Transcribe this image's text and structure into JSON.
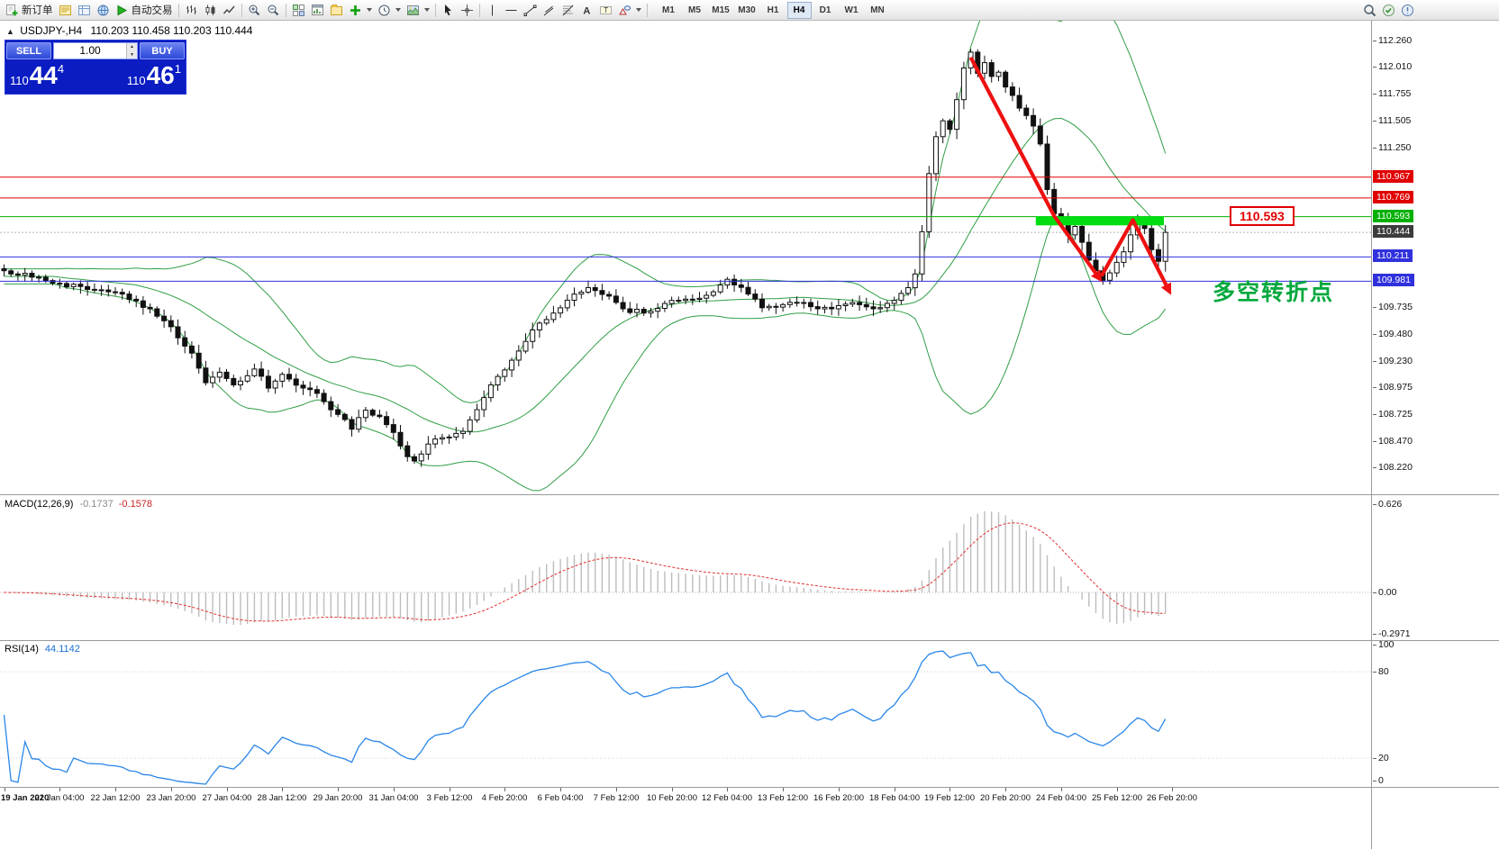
{
  "toolbar": {
    "new_order": "新订单",
    "autotrading": "自动交易",
    "timeframes": [
      "M1",
      "M5",
      "M15",
      "M30",
      "H1",
      "H4",
      "D1",
      "W1",
      "MN"
    ],
    "active_timeframe": "H4"
  },
  "chart_header": {
    "collapse_icon": "▲",
    "symbol_period": "USDJPY-,H4",
    "ohlc": "110.203 110.458 110.203 110.444"
  },
  "one_click": {
    "sell_label": "SELL",
    "buy_label": "BUY",
    "lot_value": "1.00",
    "sell_price": {
      "prefix": "110",
      "big": "44",
      "sup": "4"
    },
    "buy_price": {
      "prefix": "110",
      "big": "46",
      "sup": "1"
    }
  },
  "price_axis": {
    "plain_ticks": [
      112.26,
      112.01,
      111.755,
      111.505,
      111.25,
      109.735,
      109.48,
      109.23,
      108.975,
      108.725,
      108.47,
      108.22
    ],
    "current_price": {
      "value": "110.444",
      "bg": "#3c3c3c"
    }
  },
  "macd_panel": {
    "name": "MACD(12,26,9)",
    "main_value": "-0.1737",
    "signal_value": "-0.1578",
    "scale": [
      {
        "text": "0.626",
        "value": 0.626
      },
      {
        "text": "0.00",
        "value": 0
      },
      {
        "text": "-0.2971",
        "value": -0.2971
      }
    ]
  },
  "rsi_panel": {
    "name": "RSI(14)",
    "value": "44.1142",
    "scale": [
      {
        "text": "100",
        "value": 100
      },
      {
        "text": "80",
        "value": 80
      },
      {
        "text": "20",
        "value": 20
      },
      {
        "text": "0",
        "value": 0
      }
    ]
  },
  "time_axis": [
    "19 Jan 2020",
    "21 Jan 04:00",
    "22 Jan 12:00",
    "23 Jan 20:00",
    "27 Jan 04:00",
    "28 Jan 12:00",
    "29 Jan 20:00",
    "31 Jan 04:00",
    "3 Feb 12:00",
    "4 Feb 20:00",
    "6 Feb 04:00",
    "7 Feb 12:00",
    "10 Feb 20:00",
    "12 Feb 04:00",
    "13 Feb 12:00",
    "16 Feb 20:00",
    "18 Feb 04:00",
    "19 Feb 12:00",
    "20 Feb 20:00",
    "24 Feb 04:00",
    "25 Feb 12:00",
    "26 Feb 20:00"
  ],
  "chart_data": {
    "type": "candlestick",
    "symbol": "USDJPY-",
    "timeframe": "H4",
    "last_ohlc": {
      "open": 110.203,
      "high": 110.458,
      "low": 110.203,
      "close": 110.444
    },
    "last_close": 110.444,
    "candle_count": 168,
    "axis_top_price": 112.26,
    "axis_bottom_price": 108.22,
    "close_keyframes": [
      [
        0,
        110.08
      ],
      [
        4,
        110.02
      ],
      [
        8,
        109.96
      ],
      [
        13,
        109.9
      ],
      [
        17,
        109.86
      ],
      [
        21,
        109.72
      ],
      [
        24,
        109.55
      ],
      [
        27,
        109.3
      ],
      [
        29,
        109.02
      ],
      [
        31,
        109.12
      ],
      [
        33,
        109.0
      ],
      [
        36,
        109.15
      ],
      [
        38,
        108.97
      ],
      [
        40,
        109.1
      ],
      [
        43,
        108.97
      ],
      [
        45,
        108.92
      ],
      [
        48,
        108.72
      ],
      [
        50,
        108.58
      ],
      [
        52,
        108.76
      ],
      [
        54,
        108.7
      ],
      [
        56,
        108.55
      ],
      [
        58,
        108.32
      ],
      [
        59,
        108.28
      ],
      [
        61,
        108.44
      ],
      [
        63,
        108.5
      ],
      [
        66,
        108.56
      ],
      [
        69,
        108.88
      ],
      [
        71,
        109.08
      ],
      [
        74,
        109.32
      ],
      [
        76,
        109.52
      ],
      [
        79,
        109.68
      ],
      [
        82,
        109.86
      ],
      [
        84,
        109.92
      ],
      [
        87,
        109.84
      ],
      [
        89,
        109.72
      ],
      [
        92,
        109.68
      ],
      [
        95,
        109.77
      ],
      [
        97,
        109.8
      ],
      [
        100,
        109.82
      ],
      [
        102,
        109.88
      ],
      [
        104,
        110.0
      ],
      [
        107,
        109.86
      ],
      [
        109,
        109.73
      ],
      [
        112,
        109.76
      ],
      [
        115,
        109.78
      ],
      [
        117,
        109.72
      ],
      [
        120,
        109.75
      ],
      [
        122,
        109.78
      ],
      [
        125,
        109.72
      ],
      [
        128,
        109.8
      ],
      [
        130,
        109.92
      ],
      [
        131,
        110.05
      ],
      [
        132,
        110.45
      ],
      [
        133,
        111.0
      ],
      [
        134,
        111.35
      ],
      [
        135,
        111.5
      ],
      [
        136,
        111.42
      ],
      [
        137,
        111.7
      ],
      [
        138,
        112.0
      ],
      [
        139,
        112.15
      ],
      [
        140,
        111.95
      ],
      [
        141,
        112.05
      ],
      [
        142,
        111.92
      ],
      [
        143,
        111.96
      ],
      [
        144,
        111.82
      ],
      [
        145,
        111.74
      ],
      [
        146,
        111.62
      ],
      [
        147,
        111.55
      ],
      [
        148,
        111.45
      ],
      [
        149,
        111.28
      ],
      [
        150,
        110.85
      ],
      [
        151,
        110.62
      ],
      [
        152,
        110.55
      ],
      [
        153,
        110.42
      ],
      [
        154,
        110.5
      ],
      [
        155,
        110.35
      ],
      [
        156,
        110.18
      ],
      [
        157,
        110.08
      ],
      [
        158,
        109.99
      ],
      [
        159,
        110.06
      ],
      [
        160,
        110.16
      ],
      [
        161,
        110.26
      ],
      [
        162,
        110.42
      ],
      [
        163,
        110.55
      ],
      [
        164,
        110.48
      ],
      [
        165,
        110.28
      ],
      [
        166,
        110.17
      ],
      [
        167,
        110.444
      ]
    ],
    "bollinger": {
      "period": 20,
      "deviation": 2,
      "color": "#2f9e44"
    },
    "levels": [
      {
        "price": 110.967,
        "label": "110.967",
        "color": "#e00000"
      },
      {
        "price": 110.769,
        "label": "110.769",
        "color": "#e00000"
      },
      {
        "price": 110.593,
        "label": "110.593",
        "color": "#00b000"
      },
      {
        "price": 110.211,
        "label": "110.211",
        "color": "#3030dd"
      },
      {
        "price": 109.981,
        "label": "109.981",
        "color": "#3030dd"
      }
    ],
    "macd": {
      "fast": 12,
      "slow": 26,
      "signal": 9,
      "current_main": -0.1737,
      "current_signal": -0.1578
    },
    "rsi": {
      "period": 14,
      "current": 44.1142
    },
    "trend_arrows": {
      "color": "#ee1111",
      "paths": [
        [
          [
            139,
            112.1
          ],
          [
            151,
            110.6
          ],
          [
            157.6,
            110.0
          ]
        ],
        [
          [
            157.8,
            110.03
          ],
          [
            162.3,
            110.56
          ],
          [
            167.6,
            109.88
          ]
        ]
      ]
    },
    "highlight_bar": {
      "from_idx": 149,
      "to_idx": 166,
      "price": 110.57,
      "color": "#00dd11"
    },
    "price_flag": {
      "text": "110.593",
      "idx": 176.2,
      "price": 110.593,
      "color": "#e00000"
    },
    "pivot_label": {
      "text": "多空转折点",
      "idx": 173.8,
      "price": 109.9,
      "color": "#00a83c"
    }
  }
}
